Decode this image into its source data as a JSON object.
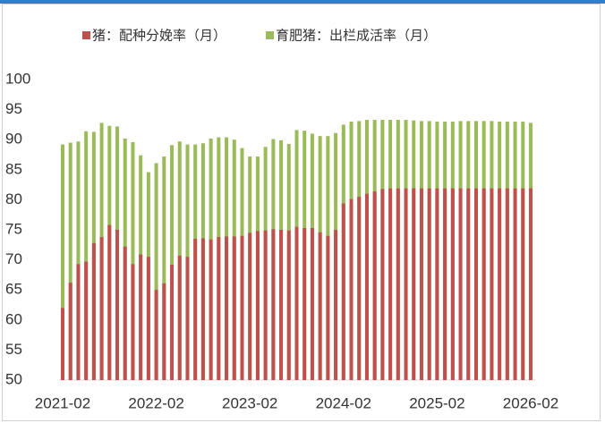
{
  "chart_data": {
    "type": "bar",
    "overlap": true,
    "categories": [
      "2021-02",
      null,
      null,
      null,
      null,
      null,
      null,
      null,
      null,
      null,
      null,
      null,
      "2022-02",
      null,
      null,
      null,
      null,
      null,
      null,
      null,
      null,
      null,
      null,
      null,
      "2023-02",
      null,
      null,
      null,
      null,
      null,
      null,
      null,
      null,
      null,
      null,
      null,
      "2024-02",
      null,
      null,
      null,
      null,
      null,
      null,
      null,
      null,
      null,
      null,
      null,
      "2025-02",
      null,
      null,
      null,
      null,
      null,
      null,
      null,
      null,
      null,
      null,
      null,
      "2026-02"
    ],
    "series": [
      {
        "name": "育肥猪：出栏成活率（月）",
        "color": "#9bbb59",
        "values": [
          89.2,
          89.5,
          89.7,
          91.4,
          91.3,
          92.8,
          92.3,
          92.2,
          90.2,
          89.6,
          87.4,
          84.6,
          86.1,
          87.2,
          89.1,
          89.7,
          89.2,
          89.2,
          89.4,
          90.2,
          90.4,
          90.4,
          90.0,
          88.6,
          87.2,
          87.2,
          88.8,
          90.1,
          89.9,
          89.3,
          91.6,
          91.5,
          91.0,
          90.6,
          90.6,
          91.1,
          92.5,
          93.0,
          93.1,
          93.3,
          93.3,
          93.3,
          93.3,
          93.3,
          93.3,
          93.2,
          93.1,
          93.1,
          93.0,
          93.0,
          93.0,
          93.1,
          93.1,
          93.1,
          93.1,
          93.1,
          93.0,
          93.0,
          93.0,
          93.0,
          92.8
        ]
      },
      {
        "name": "猪：配种分娩率（月）",
        "color": "#c0504d",
        "values": [
          62.0,
          66.2,
          69.3,
          69.7,
          72.8,
          73.8,
          75.8,
          75.0,
          72.2,
          69.3,
          70.9,
          70.5,
          65.0,
          66.1,
          69.2,
          70.7,
          70.5,
          73.5,
          73.6,
          73.4,
          73.8,
          73.9,
          73.9,
          74.0,
          74.5,
          74.8,
          74.9,
          75.1,
          75.0,
          74.9,
          75.5,
          75.3,
          75.3,
          74.6,
          74.0,
          75.0,
          79.4,
          80.1,
          80.5,
          81.0,
          81.4,
          81.8,
          81.9,
          81.9,
          81.9,
          81.9,
          81.9,
          81.9,
          81.9,
          81.9,
          81.9,
          81.9,
          81.9,
          81.9,
          81.9,
          81.9,
          81.9,
          81.9,
          81.9,
          81.9,
          81.9
        ]
      }
    ],
    "legend_order": [
      1,
      0
    ],
    "ylim": [
      50,
      100
    ],
    "yticks": [
      50,
      55,
      60,
      65,
      70,
      75,
      80,
      85,
      90,
      95,
      100
    ],
    "grid": false
  }
}
